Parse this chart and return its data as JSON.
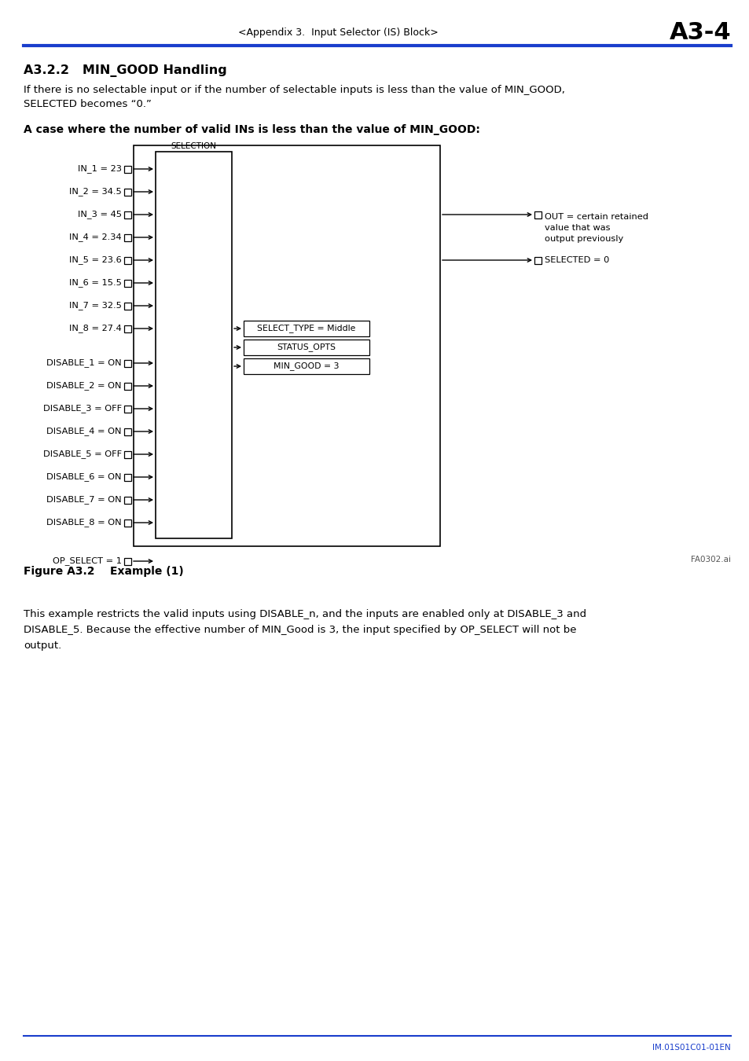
{
  "header_text": "<Appendix 3.  Input Selector (IS) Block>",
  "header_page": "A3-4",
  "section_title": "A3.2.2   MIN_GOOD Handling",
  "intro_text": "If there is no selectable input or if the number of selectable inputs is less than the value of MIN_GOOD,\nSELECTED becomes “0.”",
  "bold_label": "A case where the number of valid INs is less than the value of MIN_GOOD:",
  "diagram_label": "SELECTION",
  "inputs": [
    "IN_1 = 23",
    "IN_2 = 34.5",
    "IN_3 = 45",
    "IN_4 = 2.34",
    "IN_5 = 23.6",
    "IN_6 = 15.5",
    "IN_7 = 32.5",
    "IN_8 = 27.4"
  ],
  "disables": [
    "DISABLE_1 = ON",
    "DISABLE_2 = ON",
    "DISABLE_3 = OFF",
    "DISABLE_4 = ON",
    "DISABLE_5 = OFF",
    "DISABLE_6 = ON",
    "DISABLE_7 = ON",
    "DISABLE_8 = ON"
  ],
  "op_select": "OP_SELECT = 1",
  "select_type_box": "SELECT_TYPE = Middle",
  "status_opts_box": "STATUS_OPTS",
  "min_good_box": "MIN_GOOD = 3",
  "out_label": "OUT = certain retained\nvalue that was\noutput previously",
  "selected_label": "SELECTED = 0",
  "file_label": "FA0302.ai",
  "figure_label": "Figure A3.2    Example (1)",
  "footer_text": "This example restricts the valid inputs using DISABLE_n, and the inputs are enabled only at DISABLE_3 and\nDISABLE_5. Because the effective number of MIN_Good is 3, the input specified by OP_SELECT will not be\noutput.",
  "footer_code": "IM.01S01C01-01EN",
  "bg_color": "#ffffff",
  "text_color": "#000000",
  "blue_color": "#1a3ecc"
}
